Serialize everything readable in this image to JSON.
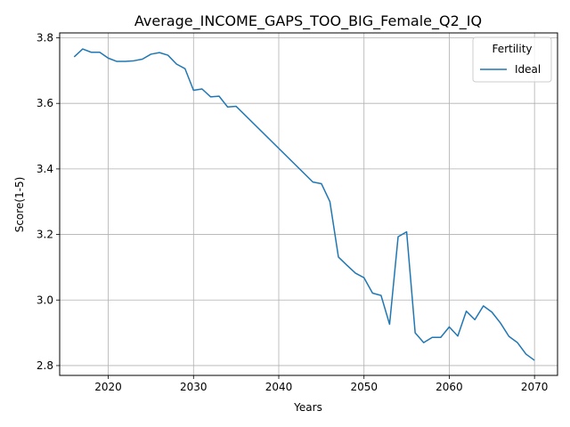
{
  "chart_data": {
    "type": "line",
    "title": "Average_INCOME_GAPS_TOO_BIG_Female_Q2_IQ",
    "xlabel": "Years",
    "ylabel": "Score(1-5)",
    "xlim": [
      2014.3,
      2072.7
    ],
    "ylim": [
      2.77,
      3.815
    ],
    "x_ticks": [
      2020,
      2030,
      2040,
      2050,
      2060,
      2070
    ],
    "y_ticks": [
      2.8,
      3.0,
      3.2,
      3.4,
      3.6,
      3.8
    ],
    "x_tick_labels": [
      "2020",
      "2030",
      "2040",
      "2050",
      "2060",
      "2070"
    ],
    "y_tick_labels": [
      "2.8",
      "3.0",
      "3.2",
      "3.4",
      "3.6",
      "3.8"
    ],
    "grid": true,
    "legend": {
      "title": "Fertility",
      "position": "top-right"
    },
    "series": [
      {
        "name": "Ideal",
        "color": "#1f77b4",
        "x": [
          2016,
          2017,
          2018,
          2019,
          2020,
          2021,
          2022,
          2023,
          2024,
          2025,
          2026,
          2027,
          2028,
          2029,
          2030,
          2031,
          2032,
          2033,
          2034,
          2035,
          2044,
          2045,
          2046,
          2047,
          2048,
          2049,
          2050,
          2051,
          2052,
          2053,
          2054,
          2055,
          2056,
          2057,
          2058,
          2059,
          2060,
          2061,
          2062,
          2063,
          2064,
          2065,
          2066,
          2067,
          2068,
          2069,
          2070
        ],
        "y": [
          3.742,
          3.766,
          3.756,
          3.756,
          3.738,
          3.728,
          3.728,
          3.73,
          3.735,
          3.75,
          3.755,
          3.747,
          3.72,
          3.706,
          3.64,
          3.644,
          3.62,
          3.622,
          3.589,
          3.591,
          3.36,
          3.355,
          3.3,
          3.131,
          3.106,
          3.082,
          3.068,
          3.021,
          3.014,
          2.926,
          3.193,
          3.208,
          2.9,
          2.87,
          2.886,
          2.886,
          2.918,
          2.89,
          2.966,
          2.94,
          2.982,
          2.963,
          2.93,
          2.889,
          2.87,
          2.835,
          2.816
        ]
      }
    ]
  }
}
